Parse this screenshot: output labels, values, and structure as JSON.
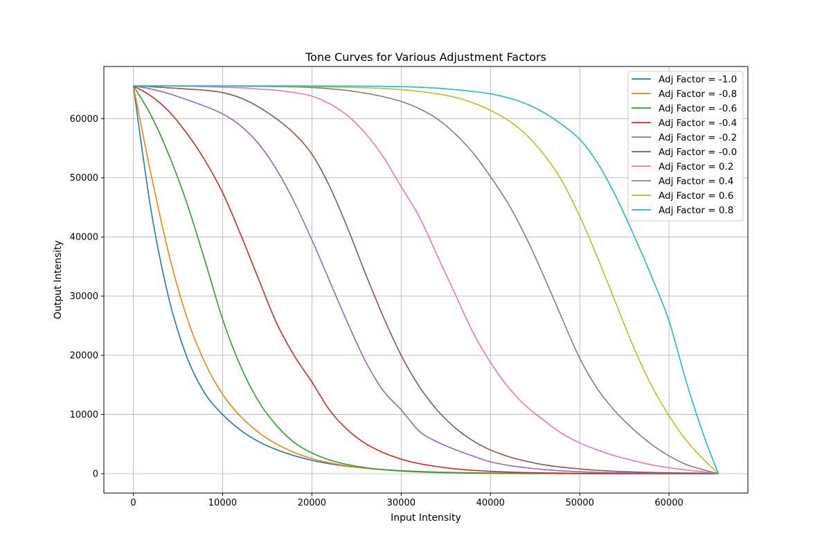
{
  "chart_data": {
    "type": "line",
    "title": "Tone Curves for Various Adjustment Factors",
    "xlabel": "Input Intensity",
    "ylabel": "Output Intensity",
    "xlim": [
      -3300,
      68835
    ],
    "ylim": [
      -3277,
      68812
    ],
    "xticks": [
      0,
      10000,
      20000,
      30000,
      40000,
      50000,
      60000
    ],
    "yticks": [
      0,
      10000,
      20000,
      30000,
      40000,
      50000,
      60000
    ],
    "grid": true,
    "legend_position": "top-right",
    "x": [
      0,
      2000,
      4000,
      6000,
      8000,
      10000,
      12000,
      14000,
      16000,
      18000,
      20000,
      22000,
      24000,
      26000,
      28000,
      30000,
      32000,
      34000,
      36000,
      38000,
      40000,
      42000,
      44000,
      46000,
      48000,
      50000,
      52000,
      54000,
      56000,
      58000,
      60000,
      62000,
      64000,
      65535
    ],
    "series": [
      {
        "name": "Adj Factor = -1.0",
        "color": "#1f77b4",
        "values": [
          65535,
          44400,
          29500,
          19700,
          13600,
          10000,
          7360,
          5450,
          4080,
          3050,
          2250,
          1670,
          1240,
          920,
          680,
          500,
          370,
          275,
          200,
          150,
          110,
          82,
          60,
          45,
          33,
          25,
          18,
          13,
          10,
          7,
          5,
          4,
          3,
          0
        ]
      },
      {
        "name": "Adj Factor = -0.8",
        "color": "#ff7f0e",
        "values": [
          65535,
          50500,
          37000,
          26400,
          18800,
          13400,
          9700,
          7000,
          5050,
          3600,
          2550,
          1820,
          1300,
          930,
          670,
          480,
          345,
          250,
          180,
          130,
          95,
          68,
          50,
          36,
          26,
          19,
          14,
          10,
          7,
          5,
          4,
          3,
          2,
          0
        ]
      },
      {
        "name": "Adj Factor = -0.6",
        "color": "#2ca02c",
        "values": [
          65535,
          60500,
          53800,
          45700,
          36100,
          26100,
          18200,
          12300,
          8200,
          5300,
          3500,
          2300,
          1530,
          1020,
          680,
          450,
          300,
          200,
          135,
          90,
          60,
          40,
          27,
          18,
          12,
          8,
          5,
          4,
          3,
          2,
          1,
          1,
          0,
          0
        ]
      },
      {
        "name": "Adj Factor = -0.4",
        "color": "#d62728",
        "values": [
          65535,
          63800,
          61200,
          57500,
          53000,
          47500,
          40500,
          33000,
          25600,
          20000,
          15500,
          10700,
          7400,
          5100,
          3550,
          2450,
          1700,
          1200,
          830,
          570,
          390,
          270,
          185,
          130,
          90,
          60,
          40,
          28,
          20,
          14,
          9,
          6,
          4,
          0
        ]
      },
      {
        "name": "Adj Factor = -0.2",
        "color": "#9467bd",
        "values": [
          65535,
          65000,
          64200,
          63200,
          62100,
          60800,
          58800,
          55800,
          51500,
          46000,
          39500,
          32500,
          25500,
          19000,
          14000,
          10800,
          7200,
          5400,
          4100,
          3000,
          2000,
          1400,
          1000,
          700,
          480,
          330,
          230,
          160,
          110,
          75,
          50,
          35,
          24,
          0
        ]
      },
      {
        "name": "Adj Factor = -0.0",
        "color": "#8c564b",
        "values": [
          65535,
          65400,
          65200,
          65000,
          64800,
          64400,
          63500,
          62000,
          60000,
          57500,
          54000,
          48500,
          41500,
          33800,
          26500,
          20000,
          14800,
          10800,
          7800,
          5600,
          4000,
          2900,
          2100,
          1500,
          1100,
          800,
          570,
          400,
          290,
          210,
          150,
          105,
          75,
          0
        ]
      },
      {
        "name": "Adj Factor = 0.2",
        "color": "#e377c2",
        "values": [
          65535,
          65520,
          65500,
          65450,
          65400,
          65300,
          65200,
          65000,
          64800,
          64400,
          63800,
          62500,
          60500,
          57500,
          53500,
          48500,
          43500,
          37000,
          30500,
          24000,
          18800,
          14600,
          11400,
          9000,
          6800,
          5200,
          4000,
          3000,
          2200,
          1500,
          1000,
          600,
          300,
          0
        ]
      },
      {
        "name": "Adj Factor = 0.4",
        "color": "#7f7f7f",
        "values": [
          65535,
          65535,
          65520,
          65510,
          65500,
          65490,
          65470,
          65440,
          65400,
          65350,
          65250,
          65050,
          64750,
          64300,
          63700,
          62900,
          61700,
          60000,
          57500,
          54300,
          50200,
          45600,
          39900,
          33300,
          26300,
          19500,
          14300,
          10500,
          7500,
          5000,
          3000,
          1500,
          600,
          0
        ]
      },
      {
        "name": "Adj Factor = 0.6",
        "color": "#bcbd22",
        "values": [
          65535,
          65535,
          65530,
          65525,
          65520,
          65510,
          65500,
          65480,
          65460,
          65440,
          65400,
          65350,
          65300,
          65200,
          65100,
          64900,
          64600,
          64200,
          63600,
          62700,
          61400,
          59700,
          57300,
          53900,
          49500,
          43500,
          36500,
          29000,
          21500,
          15000,
          9800,
          5500,
          2200,
          0
        ]
      },
      {
        "name": "Adj Factor = 0.8",
        "color": "#17becf",
        "values": [
          65535,
          65535,
          65535,
          65535,
          65534,
          65533,
          65532,
          65530,
          65528,
          65525,
          65520,
          65510,
          65500,
          65480,
          65450,
          65400,
          65300,
          65150,
          64900,
          64600,
          64200,
          63500,
          62500,
          61000,
          59000,
          56500,
          52500,
          47000,
          40500,
          33500,
          25800,
          15200,
          6000,
          0
        ]
      }
    ]
  }
}
